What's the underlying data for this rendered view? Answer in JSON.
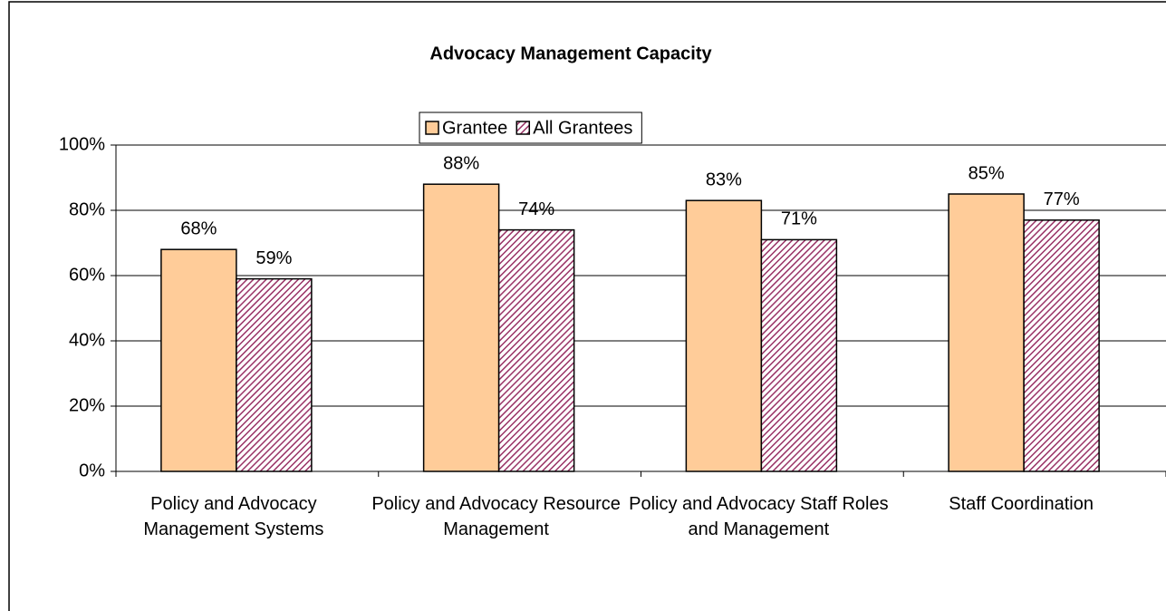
{
  "chart_data": {
    "type": "bar",
    "title": "Advocacy Management Capacity",
    "categories": [
      "Policy and Advocacy Management Systems",
      "Policy and Advocacy Resource Management",
      "Policy and Advocacy Staff Roles and Management",
      "Staff Coordination"
    ],
    "series": [
      {
        "name": "Grantee",
        "color": "#ffcc99",
        "values": [
          68,
          88,
          83,
          85
        ],
        "value_labels": [
          "68%",
          "88%",
          "83%",
          "85%"
        ]
      },
      {
        "name": "All Grantees",
        "color": "#993366",
        "pattern": "hatch",
        "values": [
          59,
          74,
          71,
          77
        ],
        "value_labels": [
          "59%",
          "74%",
          "71%",
          "77%"
        ]
      }
    ],
    "ylim": [
      0,
      100
    ],
    "yticks": [
      {
        "value": 0,
        "label": "0%"
      },
      {
        "value": 20,
        "label": "20%"
      },
      {
        "value": 40,
        "label": "40%"
      },
      {
        "value": 60,
        "label": "60%"
      },
      {
        "value": 80,
        "label": "80%"
      },
      {
        "value": 100,
        "label": "100%"
      }
    ],
    "grid": true,
    "legend": "top"
  }
}
